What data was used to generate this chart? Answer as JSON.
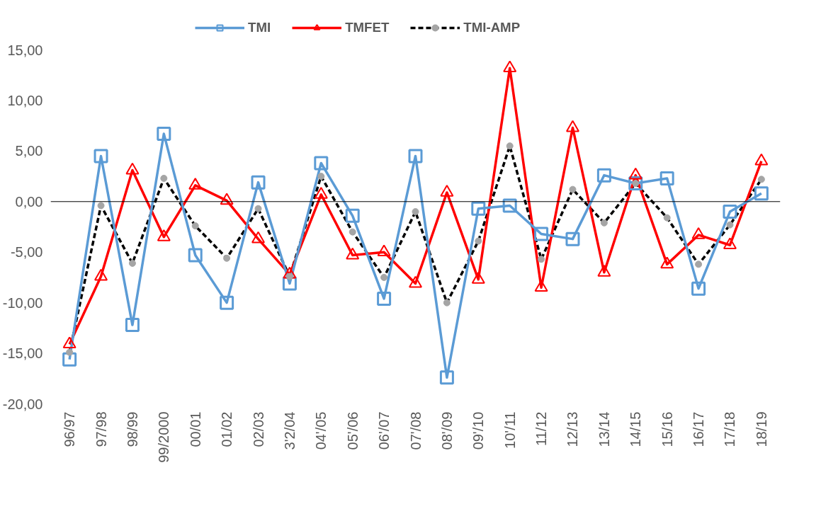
{
  "chart_data": {
    "type": "line",
    "categories": [
      "96/97",
      "97/98",
      "98/99",
      "99/2000",
      "00/01",
      "01/02",
      "02/03",
      "3'2/04",
      "04'/05",
      "05'/06",
      "06'/07",
      "07'/08",
      "08'/09",
      "09'/10",
      "10'/11",
      "11/12",
      "12/13",
      "13/14",
      "14/15",
      "15/16",
      "16/17",
      "17/18",
      "18/19"
    ],
    "series": [
      {
        "name": "TMI",
        "color": "#5b9bd5",
        "marker": "square",
        "line_style": "solid",
        "values": [
          -15.6,
          4.5,
          -12.2,
          6.7,
          -5.3,
          -10.0,
          1.9,
          -8.1,
          3.8,
          -1.4,
          -9.6,
          4.5,
          -17.4,
          -0.7,
          -0.4,
          -3.2,
          -3.7,
          2.6,
          1.8,
          2.3,
          -8.6,
          -1.0,
          0.8
        ]
      },
      {
        "name": "TMFET",
        "color": "#ff0000",
        "marker": "triangle",
        "line_style": "solid",
        "values": [
          -14.1,
          -7.4,
          3.1,
          -3.5,
          1.6,
          0.1,
          -3.7,
          -7.2,
          0.7,
          -5.3,
          -5.0,
          -8.1,
          0.9,
          -7.7,
          13.2,
          -8.5,
          7.3,
          -7.0,
          2.6,
          -6.2,
          -3.3,
          -4.3,
          4.0
        ]
      },
      {
        "name": "TMI-AMP",
        "color": "#000000",
        "marker": "circle",
        "line_style": "dashed",
        "values": [
          -14.9,
          -0.4,
          -6.1,
          2.3,
          -2.4,
          -5.6,
          -0.7,
          -7.4,
          2.5,
          -3.0,
          -7.5,
          -1.0,
          -10.0,
          -3.9,
          5.5,
          -5.7,
          1.2,
          -2.1,
          1.8,
          -1.6,
          -6.2,
          -2.3,
          2.2
        ]
      }
    ],
    "ylim": [
      -20,
      15
    ],
    "yticks": [
      {
        "value": -20,
        "label": "-20,00"
      },
      {
        "value": -15,
        "label": "-15,00"
      },
      {
        "value": -10,
        "label": "-10,00"
      },
      {
        "value": -5,
        "label": "-5,00"
      },
      {
        "value": 0,
        "label": "0,00"
      },
      {
        "value": 5,
        "label": "5,00"
      },
      {
        "value": 10,
        "label": "10,00"
      },
      {
        "value": 15,
        "label": "15,00"
      }
    ],
    "ref_lines": [
      {
        "axis": "y",
        "value": 0,
        "label": null,
        "color": "#000000"
      }
    ],
    "grid": false,
    "legend": "top"
  }
}
